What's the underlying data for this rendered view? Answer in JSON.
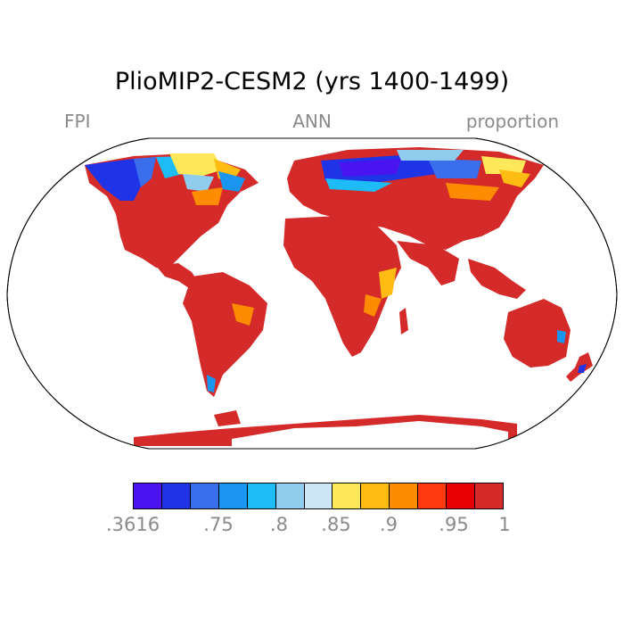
{
  "title": "PlioMIP2-CESM2 (yrs 1400-1499)",
  "left_label": "FPI",
  "center_label": "ANN",
  "right_label": "proportion",
  "colorbar": {
    "colors": [
      "#4a14f0",
      "#1e34e6",
      "#3a6eea",
      "#1a96f0",
      "#1ebcf6",
      "#90cced",
      "#cce6f8",
      "#ffe85a",
      "#ffbd14",
      "#ff8c00",
      "#ff3a0e",
      "#e60000",
      "#d42a2a"
    ],
    "labels": [
      ".3616",
      ".75",
      ".8",
      ".85",
      ".9",
      ".95",
      "1"
    ]
  },
  "map": {
    "projection": "Robinson",
    "land_color": "#d42a2a",
    "ocean_color": "#ffffff"
  }
}
